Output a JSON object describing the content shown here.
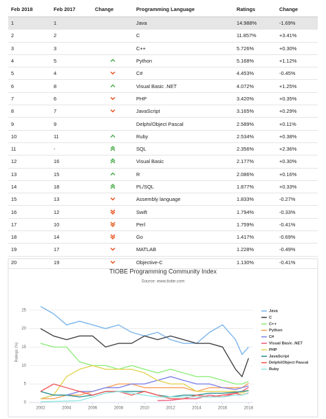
{
  "table": {
    "headers": [
      "Feb 2018",
      "Feb 2017",
      "Change",
      "Programming Language",
      "Ratings",
      "Change"
    ],
    "rows": [
      [
        "1",
        "1",
        "Java",
        "14.988%",
        "-1.69%"
      ],
      [
        "2",
        "2",
        "C",
        "11.857%",
        "+3.41%"
      ],
      [
        "3",
        "3",
        "C++",
        "5.726%",
        "+0.30%"
      ],
      [
        "4",
        "5",
        "Python",
        "5.168%",
        "+1.12%"
      ],
      [
        "5",
        "4",
        "C#",
        "4.453%",
        "-0.45%"
      ],
      [
        "6",
        "8",
        "Visual Basic .NET",
        "4.072%",
        "+1.25%"
      ],
      [
        "7",
        "6",
        "PHP",
        "3.420%",
        "+0.35%"
      ],
      [
        "8",
        "7",
        "JavaScript",
        "3.165%",
        "+0.29%"
      ],
      [
        "9",
        "9",
        "Delphi/Object Pascal",
        "2.589%",
        "+0.11%"
      ],
      [
        "10",
        "11",
        "Ruby",
        "2.534%",
        "+0.38%"
      ],
      [
        "11",
        "-",
        "SQL",
        "2.356%",
        "+2.36%"
      ],
      [
        "12",
        "16",
        "Visual Basic",
        "2.177%",
        "+0.30%"
      ],
      [
        "13",
        "15",
        "R",
        "2.086%",
        "+0.16%"
      ],
      [
        "14",
        "18",
        "PL/SQL",
        "1.877%",
        "+0.33%"
      ],
      [
        "15",
        "13",
        "Assembly language",
        "1.833%",
        "-0.27%"
      ],
      [
        "16",
        "12",
        "Swift",
        "1.794%",
        "-0.33%"
      ],
      [
        "17",
        "10",
        "Perl",
        "1.759%",
        "-0.41%"
      ],
      [
        "18",
        "14",
        "Go",
        "1.417%",
        "-0.69%"
      ],
      [
        "19",
        "17",
        "MATLAB",
        "1.228%",
        "-0.49%"
      ],
      [
        "20",
        "19",
        "Objective-C",
        "1.130%",
        "-0.41%"
      ]
    ]
  },
  "chart_data": {
    "type": "line",
    "title": "TIOBE Programming Community Index",
    "subtitle": "Source: www.tiobe.com",
    "y_label": "Ratings (%)",
    "x": [
      2002,
      2003,
      2004,
      2005,
      2006,
      2007,
      2008,
      2009,
      2010,
      2011,
      2012,
      2013,
      2014,
      2015,
      2016,
      2017,
      2017.5,
      2018
    ],
    "xlim": [
      2001.1,
      2018.35
    ],
    "ylim": [
      0,
      27
    ],
    "xticks": [
      2002,
      2004,
      2006,
      2008,
      2010,
      2012,
      2014,
      2016,
      2018
    ],
    "yticks": [
      0,
      5,
      10,
      15,
      20,
      25
    ],
    "grid": true,
    "legend": "right",
    "series": [
      {
        "name": "Java",
        "color": "#7cb5ec",
        "values": [
          26,
          24,
          21,
          22,
          21,
          20,
          21,
          19,
          18,
          19,
          17,
          16,
          16,
          19,
          21,
          17,
          13,
          15
        ]
      },
      {
        "name": "C",
        "color": "#434348",
        "values": [
          20,
          18,
          17,
          18,
          18,
          15,
          16,
          16,
          18,
          17,
          18,
          17,
          16,
          16,
          15,
          9,
          7,
          12
        ]
      },
      {
        "name": "C++",
        "color": "#90ed7d",
        "values": [
          16,
          15,
          15,
          11,
          10,
          10,
          9,
          10,
          9,
          8,
          9,
          8,
          7,
          7,
          6,
          5,
          5,
          5.7
        ]
      },
      {
        "name": "Python",
        "color": "#f7a35c",
        "values": [
          1,
          1,
          2,
          2,
          3,
          4,
          5,
          5,
          4,
          4,
          4,
          4,
          3,
          4,
          4,
          4,
          4,
          5.2
        ]
      },
      {
        "name": "C#",
        "color": "#8085e9",
        "values": [
          1,
          2,
          2,
          3,
          3,
          4,
          4,
          5,
          5,
          6,
          7,
          6,
          5,
          5,
          4,
          3.5,
          4,
          4.5
        ]
      },
      {
        "name": "Visual Basic .NET",
        "color": "#f15c80",
        "values": [
          null,
          null,
          null,
          null,
          null,
          null,
          null,
          null,
          null,
          0.5,
          0.6,
          1,
          1,
          2,
          1.5,
          2.5,
          3,
          4.1
        ]
      },
      {
        "name": "PHP",
        "color": "#e4d354",
        "values": [
          1,
          2,
          7,
          9,
          10,
          9,
          9,
          9,
          8,
          6,
          5,
          5,
          3,
          3,
          3,
          3,
          2.5,
          3.4
        ]
      },
      {
        "name": "JavaScript",
        "color": "#2b908f",
        "values": [
          3,
          2,
          2,
          1.5,
          2,
          3,
          3,
          3,
          3,
          2,
          1.5,
          2,
          2,
          2.5,
          2.5,
          2.8,
          3,
          3.2
        ]
      },
      {
        "name": "Delphi/Object Pascal",
        "color": "#f45b5b",
        "values": [
          3,
          5,
          4,
          3,
          2,
          3,
          3,
          2,
          3,
          2,
          1,
          1,
          2,
          1.5,
          2,
          2.5,
          2,
          2.6
        ]
      },
      {
        "name": "Ruby",
        "color": "#91e8e1",
        "values": [
          0.2,
          0.3,
          0.4,
          0.5,
          1.5,
          2.5,
          3,
          2.5,
          2,
          1.5,
          1.5,
          1.5,
          1.5,
          1.5,
          1.5,
          2,
          2,
          2.5
        ]
      }
    ]
  }
}
